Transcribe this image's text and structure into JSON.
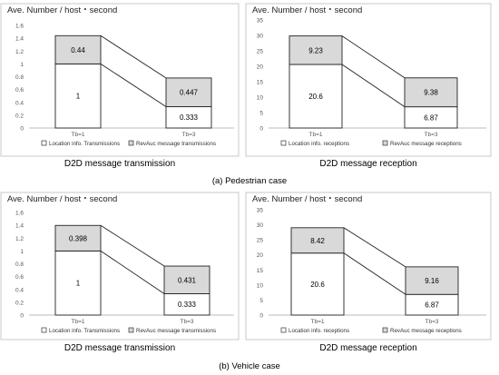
{
  "figure": {
    "case_a": "(a) Pedestrian case",
    "case_b": "(b) Vehicle case"
  },
  "chart_data": [
    {
      "type": "bar",
      "stacked": true,
      "ylabel": "Ave. Number / host・second",
      "title": "D2D message transmission",
      "categories": [
        "Tb=1",
        "Tb=3"
      ],
      "series": [
        {
          "name": "Location info. Transmissions",
          "values": [
            1,
            0.333
          ],
          "color": "#ffffff"
        },
        {
          "name": "RevAuc message transmissions",
          "values": [
            0.44,
            0.447
          ],
          "color": "#d9d9d9"
        }
      ],
      "ylim": [
        0,
        1.6
      ],
      "yticks": [
        "0",
        "0.2",
        "0.4",
        "0.6",
        "0.8",
        "1",
        "1.2",
        "1.4",
        "1.6"
      ],
      "grid": false,
      "legend": "bottom"
    },
    {
      "type": "bar",
      "stacked": true,
      "ylabel": "Ave. Number / host・second",
      "title": "D2D message reception",
      "categories": [
        "Tb=1",
        "Tb=3"
      ],
      "series": [
        {
          "name": "Location info. receptions",
          "values": [
            20.6,
            6.87
          ],
          "color": "#ffffff"
        },
        {
          "name": "RevAuc message receptions",
          "values": [
            9.23,
            9.38
          ],
          "color": "#d9d9d9"
        }
      ],
      "ylim": [
        0,
        35
      ],
      "yticks": [
        "0",
        "5",
        "10",
        "15",
        "20",
        "25",
        "30",
        "35"
      ],
      "grid": false,
      "legend": "bottom"
    },
    {
      "type": "bar",
      "stacked": true,
      "ylabel": "Ave. Number / host・second",
      "title": "D2D message transmission",
      "categories": [
        "Tb=1",
        "Tb=3"
      ],
      "series": [
        {
          "name": "Location info. Transmissions",
          "values": [
            1,
            0.333
          ],
          "color": "#ffffff"
        },
        {
          "name": "RevAuc message transmissions",
          "values": [
            0.398,
            0.431
          ],
          "color": "#d9d9d9"
        }
      ],
      "ylim": [
        0,
        1.6
      ],
      "yticks": [
        "0",
        "0.2",
        "0.4",
        "0.6",
        "0.8",
        "1",
        "1.2",
        "1.4",
        "1.6"
      ],
      "grid": false,
      "legend": "bottom"
    },
    {
      "type": "bar",
      "stacked": true,
      "ylabel": "Ave. Number / host・second",
      "title": "D2D message reception",
      "categories": [
        "Tb=1",
        "Tb=3"
      ],
      "series": [
        {
          "name": "Location info. receptions",
          "values": [
            20.6,
            6.87
          ],
          "color": "#ffffff"
        },
        {
          "name": "RevAuc message receptions",
          "values": [
            8.42,
            9.16
          ],
          "color": "#d9d9d9"
        }
      ],
      "ylim": [
        0,
        35
      ],
      "yticks": [
        "0",
        "5",
        "10",
        "15",
        "20",
        "25",
        "30",
        "35"
      ],
      "grid": false,
      "legend": "bottom"
    }
  ]
}
